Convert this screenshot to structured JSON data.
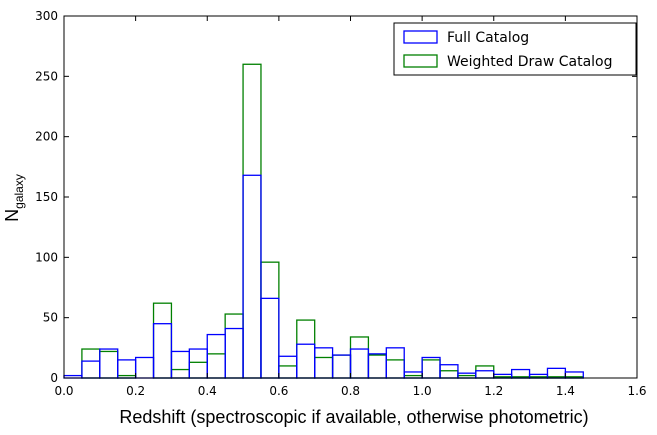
{
  "chart_data": {
    "type": "histogram",
    "xlabel": "Redshift (spectroscopic if available, otherwise photometric)",
    "ylabel_main": "N",
    "ylabel_sub": "galaxy",
    "xlim": [
      0.0,
      1.6
    ],
    "ylim": [
      0,
      300
    ],
    "x_ticks": [
      "0.0",
      "0.2",
      "0.4",
      "0.6",
      "0.8",
      "1.0",
      "1.2",
      "1.4",
      "1.6"
    ],
    "y_ticks": [
      "0",
      "50",
      "100",
      "150",
      "200",
      "250",
      "300"
    ],
    "grid": false,
    "legend_position": "top-right",
    "bin_edges": [
      0.0,
      0.05,
      0.1,
      0.15,
      0.2,
      0.25,
      0.3,
      0.35,
      0.4,
      0.45,
      0.5,
      0.55,
      0.6,
      0.65,
      0.7,
      0.75,
      0.8,
      0.85,
      0.9,
      0.95,
      1.0,
      1.05,
      1.1,
      1.15,
      1.2,
      1.25,
      1.3,
      1.35,
      1.4,
      1.45
    ],
    "series": [
      {
        "name": "Full Catalog",
        "color": "#0000ff",
        "values": [
          2,
          14,
          24,
          15,
          17,
          45,
          22,
          24,
          36,
          41,
          168,
          66,
          18,
          28,
          25,
          19,
          24,
          20,
          25,
          5,
          17,
          11,
          4,
          6,
          3,
          7,
          3,
          8,
          5
        ]
      },
      {
        "name": "Weighted Draw Catalog",
        "color": "#008000",
        "values": [
          0,
          24,
          22,
          2,
          0,
          62,
          7,
          13,
          20,
          53,
          260,
          96,
          10,
          48,
          17,
          19,
          34,
          19,
          15,
          2,
          15,
          6,
          2,
          10,
          1,
          1,
          1,
          1,
          1
        ]
      }
    ]
  }
}
